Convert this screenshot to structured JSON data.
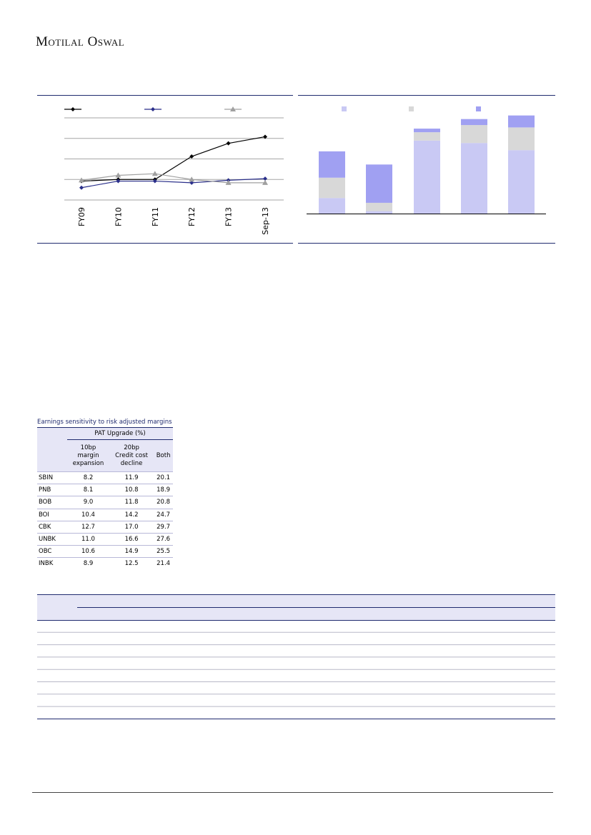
{
  "header": {
    "brand": "Motilal Oswal"
  },
  "line_chart": {
    "chart_data": {
      "type": "line",
      "categories": [
        "FY09",
        "FY10",
        "FY11",
        "FY12",
        "FY13",
        "Sep-13"
      ],
      "series": [
        {
          "values": [
            2.3,
            2.5,
            2.5,
            5.3,
            6.9,
            7.7
          ],
          "color": "#000000",
          "marker": "diamond"
        },
        {
          "values": [
            1.5,
            2.3,
            2.3,
            2.1,
            2.4,
            2.6
          ],
          "color": "#2a2f8a",
          "marker": "diamond"
        },
        {
          "values": [
            2.4,
            3.0,
            3.2,
            2.5,
            2.1,
            2.1
          ],
          "color": "#a0a0a0",
          "marker": "triangle"
        }
      ],
      "ylim": [
        0,
        10
      ],
      "grid": true,
      "legend": "top"
    }
  },
  "bar_chart": {
    "chart_data": {
      "type": "bar",
      "stacked": true,
      "categories": [
        "",
        "",
        "",
        "",
        ""
      ],
      "series": [
        {
          "values": [
            13,
            2,
            61,
            59,
            53
          ],
          "color": "#c9c9f4"
        },
        {
          "values": [
            17,
            7,
            7,
            15,
            19
          ],
          "color": "#d8d8d8"
        },
        {
          "values": [
            22,
            32,
            3,
            5,
            10
          ],
          "color": "#a0a0f2"
        }
      ],
      "ylim": [
        0,
        80
      ],
      "legend": "top"
    }
  },
  "sensitivity_table": {
    "title": "Earnings sensitivity to risk adjusted margins",
    "group_header": "PAT Upgrade (%)",
    "columns": [
      {
        "line1": "10bp",
        "line2": "margin",
        "line3": "expansion"
      },
      {
        "line1": "20bp",
        "line2": "Credit cost",
        "line3": "decline"
      },
      {
        "line1": "",
        "line2": "Both",
        "line3": ""
      }
    ],
    "rows": [
      {
        "bank": "SBIN",
        "v1": "8.2",
        "v2": "11.9",
        "v3": "20.1"
      },
      {
        "bank": "PNB",
        "v1": "8.1",
        "v2": "10.8",
        "v3": "18.9"
      },
      {
        "bank": "BOB",
        "v1": "9.0",
        "v2": "11.8",
        "v3": "20.8"
      },
      {
        "bank": "BOI",
        "v1": "10.4",
        "v2": "14.2",
        "v3": "24.7"
      },
      {
        "bank": "CBK",
        "v1": "12.7",
        "v2": "17.0",
        "v3": "29.7"
      },
      {
        "bank": "UNBK",
        "v1": "11.0",
        "v2": "16.6",
        "v3": "27.6"
      },
      {
        "bank": "OBC",
        "v1": "10.6",
        "v2": "14.9",
        "v3": "25.5"
      },
      {
        "bank": "INBK",
        "v1": "8.9",
        "v2": "12.5",
        "v3": "21.4"
      }
    ]
  },
  "colors": {
    "rule": "#1f2a6e",
    "table_header": "#e6e6f6",
    "row_line": "#b8b8d8"
  }
}
